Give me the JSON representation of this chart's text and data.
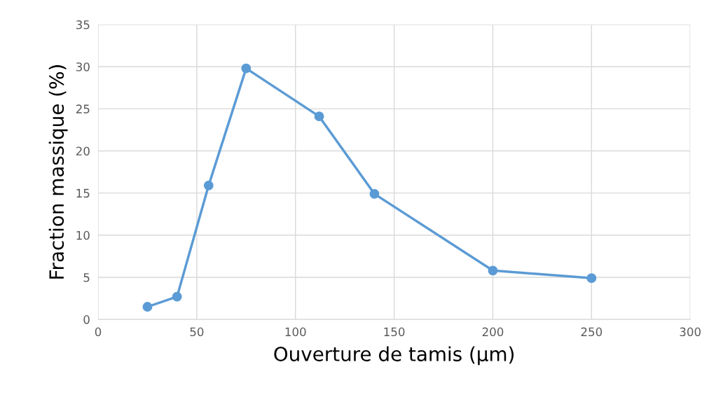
{
  "chart_data": {
    "type": "line",
    "xlabel": "Ouverture de tamis (µm)",
    "ylabel": "Fraction massique (%)",
    "x": [
      25,
      40,
      56,
      75,
      112,
      140,
      200,
      250
    ],
    "series": [
      {
        "color": "#5b9bd5",
        "values": [
          1.5,
          2.7,
          15.9,
          29.8,
          24.1,
          14.9,
          5.8,
          4.9
        ]
      }
    ],
    "xlim": [
      0,
      300
    ],
    "xticks": [
      0,
      50,
      100,
      150,
      200,
      250,
      300
    ],
    "ylim": [
      0,
      35
    ],
    "yticks": [
      0,
      5,
      10,
      15,
      20,
      25,
      30,
      35
    ],
    "grid": true,
    "marker": "circle"
  }
}
